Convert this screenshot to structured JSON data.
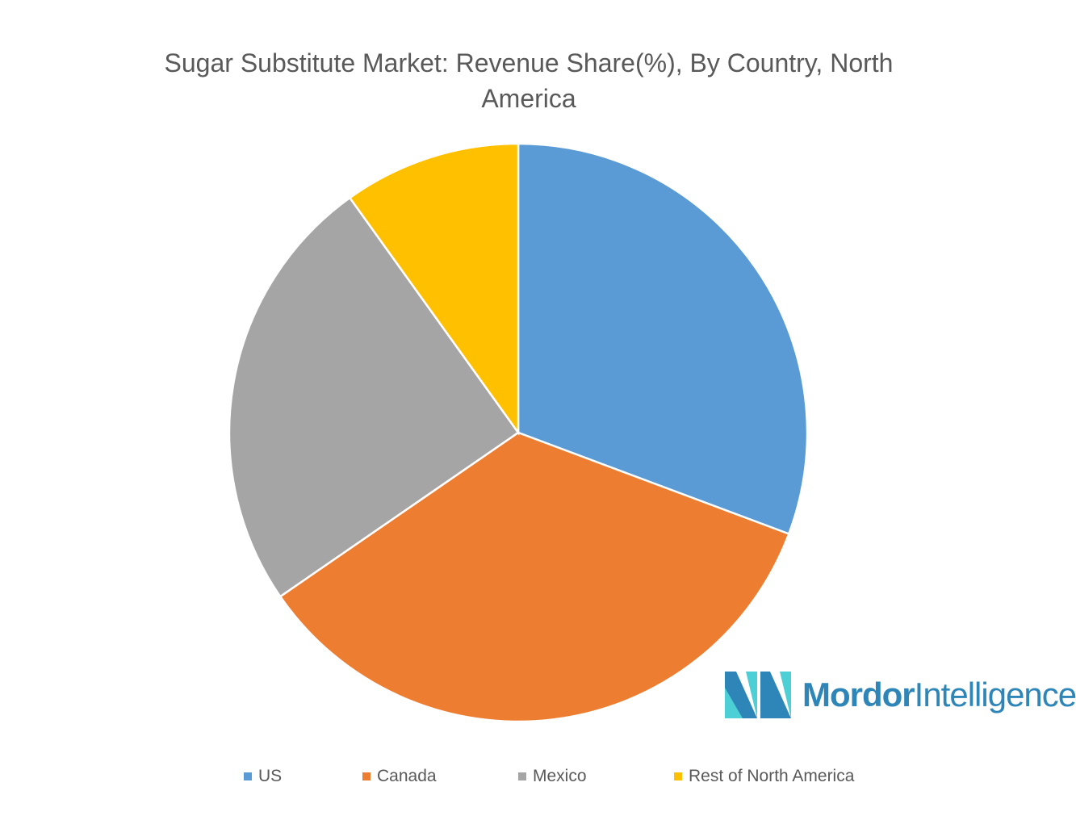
{
  "chart_data": {
    "type": "pie",
    "title": "Sugar Substitute Market: Revenue Share(%), By Country, North America",
    "categories": [
      "US",
      "Canada",
      "Mexico",
      "Rest of North America"
    ],
    "values": [
      30.7,
      34.7,
      24.7,
      9.9
    ],
    "colors": [
      "#5b9bd5",
      "#ed7d31",
      "#a5a5a5",
      "#ffc000"
    ],
    "start_angle_deg": 0,
    "direction": "clockwise",
    "legend_position": "bottom"
  },
  "logo": {
    "bold": "Mordor",
    "light": "Intelligence"
  }
}
